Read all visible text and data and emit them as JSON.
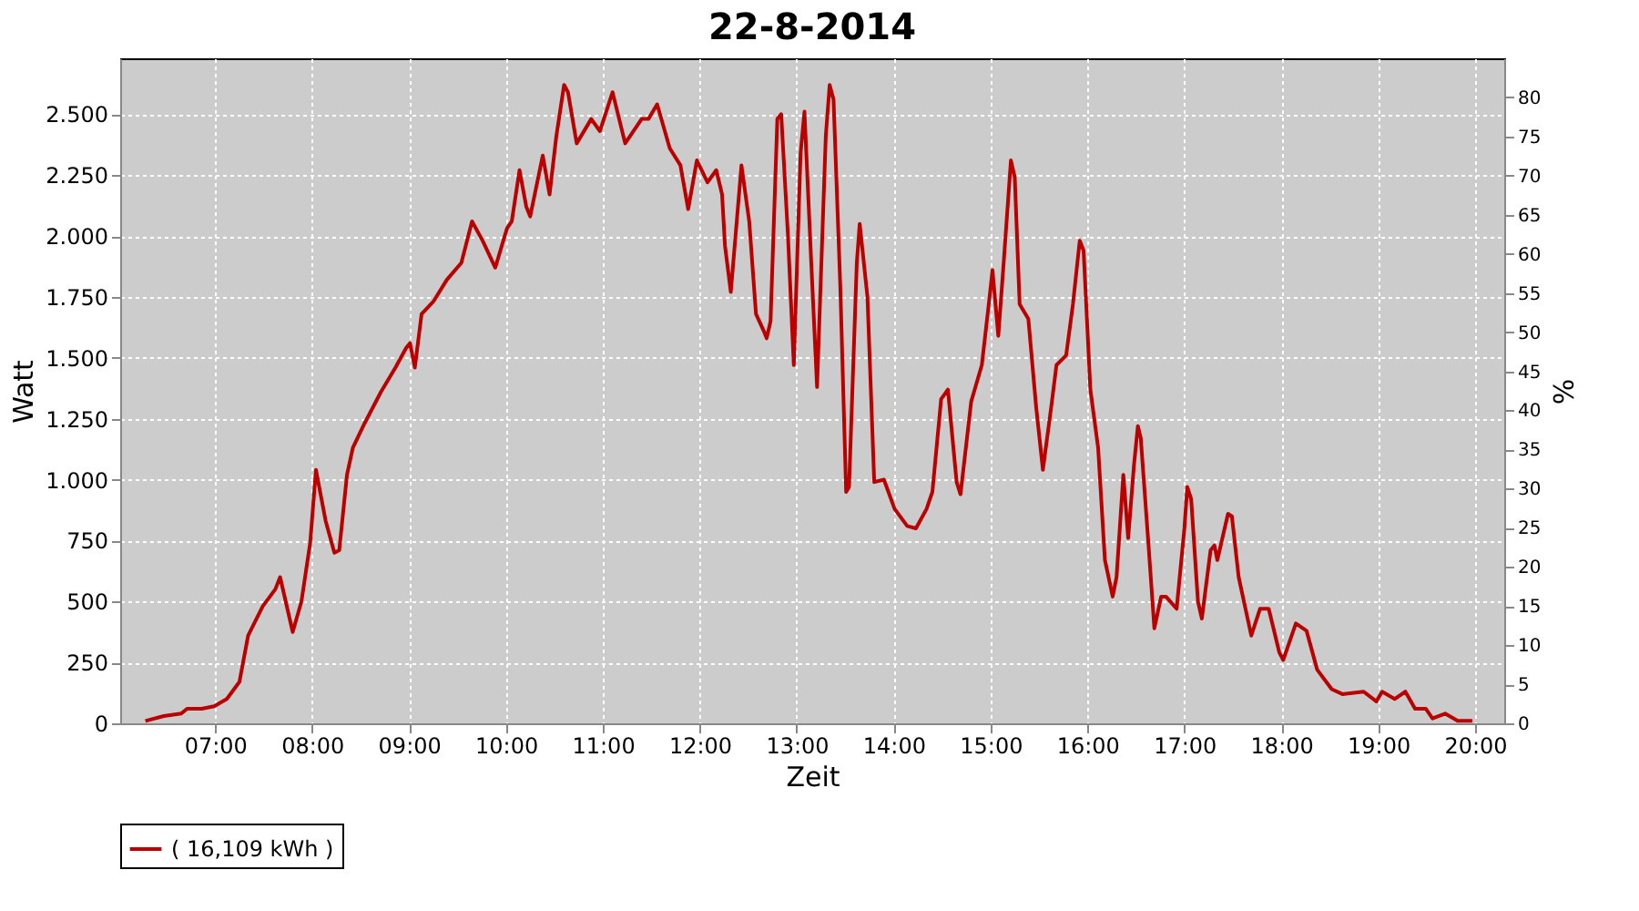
{
  "chart_data": {
    "type": "line",
    "title": "22-8-2014",
    "xlabel": "Zeit",
    "ylabel": "Watt",
    "y2label": "%",
    "xlim": [
      6.02,
      20.3
    ],
    "xticks": [
      {
        "value": 7,
        "label": "07:00"
      },
      {
        "value": 8,
        "label": "08:00"
      },
      {
        "value": 9,
        "label": "09:00"
      },
      {
        "value": 10,
        "label": "10:00"
      },
      {
        "value": 11,
        "label": "11:00"
      },
      {
        "value": 12,
        "label": "12:00"
      },
      {
        "value": 13,
        "label": "13:00"
      },
      {
        "value": 14,
        "label": "14:00"
      },
      {
        "value": 15,
        "label": "15:00"
      },
      {
        "value": 16,
        "label": "16:00"
      },
      {
        "value": 17,
        "label": "17:00"
      },
      {
        "value": 18,
        "label": "18:00"
      },
      {
        "value": 19,
        "label": "19:00"
      },
      {
        "value": 20,
        "label": "20:00"
      }
    ],
    "ylim": [
      0,
      2729
    ],
    "yticks": [
      0,
      250,
      500,
      750,
      {
        "value": 1000,
        "label": "1.000"
      },
      {
        "value": 1250,
        "label": "1.250"
      },
      {
        "value": 1500,
        "label": "1.500"
      },
      {
        "value": 1750,
        "label": "1.750"
      },
      {
        "value": 2000,
        "label": "2.000"
      },
      {
        "value": 2250,
        "label": "2.250"
      },
      {
        "value": 2500,
        "label": "2.500"
      }
    ],
    "y2lim": [
      0,
      85
    ],
    "y2ticks": [
      0,
      5,
      10,
      15,
      20,
      25,
      30,
      35,
      40,
      45,
      50,
      55,
      60,
      65,
      70,
      75,
      80
    ],
    "grid": true,
    "legend": "bottom",
    "marker": "none",
    "line_style": "solid",
    "series": [
      {
        "name": "( 16,109 kWh )",
        "color": "#bb0000",
        "x": [
          6.28,
          6.47,
          6.65,
          6.71,
          6.86,
          6.99,
          7.12,
          7.25,
          7.34,
          7.49,
          7.62,
          7.67,
          7.8,
          7.89,
          7.98,
          8.04,
          8.14,
          8.23,
          8.28,
          8.36,
          8.42,
          8.54,
          8.71,
          8.86,
          8.97,
          9.01,
          9.06,
          9.13,
          9.25,
          9.39,
          9.54,
          9.65,
          9.76,
          9.89,
          10.01,
          10.06,
          10.14,
          10.21,
          10.25,
          10.38,
          10.45,
          10.52,
          10.6,
          10.64,
          10.73,
          10.88,
          10.97,
          11.1,
          11.23,
          11.4,
          11.47,
          11.56,
          11.69,
          11.8,
          11.88,
          11.97,
          12.08,
          12.17,
          12.23,
          12.26,
          12.32,
          12.43,
          12.51,
          12.58,
          12.66,
          12.69,
          12.73,
          12.8,
          12.84,
          12.91,
          12.97,
          13.04,
          13.08,
          13.15,
          13.21,
          13.3,
          13.34,
          13.38,
          13.45,
          13.51,
          13.54,
          13.62,
          13.65,
          13.73,
          13.8,
          13.9,
          14.01,
          14.14,
          14.23,
          14.34,
          14.4,
          14.49,
          14.56,
          14.65,
          14.69,
          14.8,
          14.91,
          14.99,
          15.02,
          15.08,
          15.13,
          15.21,
          15.25,
          15.3,
          15.39,
          15.47,
          15.54,
          15.63,
          15.68,
          15.78,
          15.85,
          15.92,
          15.96,
          16.03,
          16.11,
          16.18,
          16.26,
          16.3,
          16.37,
          16.42,
          16.48,
          16.52,
          16.55,
          16.63,
          16.69,
          16.76,
          16.81,
          16.92,
          17.0,
          17.03,
          17.07,
          17.14,
          17.18,
          17.27,
          17.31,
          17.34,
          17.45,
          17.49,
          17.56,
          17.69,
          17.78,
          17.87,
          17.98,
          18.02,
          18.15,
          18.26,
          18.37,
          18.52,
          18.63,
          18.85,
          18.98,
          19.04,
          19.17,
          19.28,
          19.38,
          19.49,
          19.56,
          19.69,
          19.82,
          19.97
        ],
        "values": [
          10,
          30,
          40,
          60,
          60,
          70,
          100,
          170,
          360,
          480,
          550,
          600,
          375,
          500,
          740,
          1040,
          830,
          700,
          710,
          1020,
          1130,
          1230,
          1360,
          1460,
          1540,
          1560,
          1460,
          1680,
          1730,
          1820,
          1890,
          2060,
          1980,
          1870,
          2030,
          2060,
          2270,
          2120,
          2080,
          2330,
          2170,
          2410,
          2620,
          2590,
          2380,
          2480,
          2430,
          2590,
          2380,
          2480,
          2480,
          2540,
          2360,
          2290,
          2110,
          2310,
          2220,
          2270,
          2170,
          1960,
          1770,
          2290,
          2060,
          1680,
          1610,
          1580,
          1650,
          2480,
          2500,
          2000,
          1470,
          2340,
          2510,
          1890,
          1380,
          2410,
          2620,
          2560,
          1790,
          950,
          970,
          1890,
          2050,
          1750,
          990,
          1000,
          880,
          810,
          800,
          880,
          950,
          1330,
          1370,
          990,
          940,
          1320,
          1470,
          1750,
          1860,
          1590,
          1860,
          2310,
          2240,
          1720,
          1660,
          1300,
          1040,
          1310,
          1470,
          1510,
          1720,
          1980,
          1940,
          1370,
          1130,
          670,
          520,
          600,
          1020,
          760,
          1060,
          1220,
          1170,
          730,
          390,
          520,
          520,
          470,
          800,
          970,
          920,
          500,
          430,
          710,
          730,
          670,
          860,
          850,
          600,
          360,
          470,
          470,
          290,
          260,
          410,
          380,
          220,
          140,
          120,
          130,
          90,
          130,
          100,
          130,
          60,
          60,
          20,
          40,
          10,
          10
        ]
      }
    ]
  }
}
